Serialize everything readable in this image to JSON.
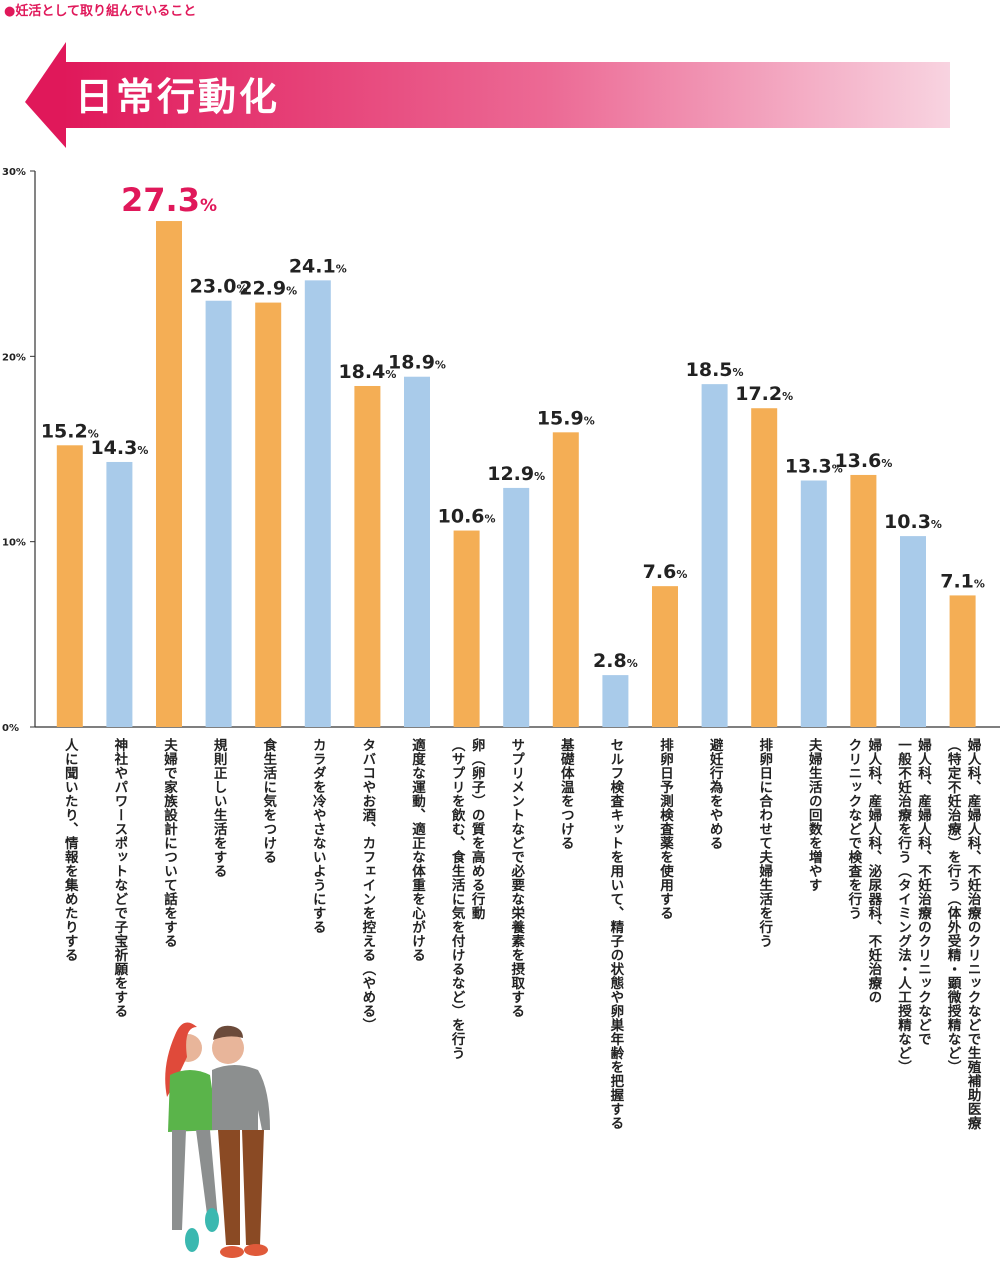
{
  "chart_data": {
    "type": "bar",
    "subtitle": "●妊活として取り組んでいること",
    "title": "日常行動化",
    "categories": [
      "人に聞いたり、情報を集めたりする",
      "神社やパワースポットなどで子宝祈願をする",
      "夫婦で家族設計について話をする",
      "規則正しい生活をする",
      "食生活に気をつける",
      "カラダを冷やさないようにする",
      "タバコやお酒、カフェインを控える（やめる）",
      "適度な運動、適正な体重を心がける",
      "卵（卵子）の質を高める行動\n（サプリを飲む、食生活に気を付けるなど）を行う",
      "サプリメントなどで必要な栄養素を摂取する",
      "基礎体温をつける",
      "セルフ検査キットを用いて、精子の状態や卵巣年齢を把握する",
      "排卵日予測検査薬を使用する",
      "避妊行為をやめる",
      "排卵日に合わせて夫婦生活を行う",
      "夫婦生活の回数を増やす",
      "婦人科、産婦人科、泌尿器科、不妊治療の\nクリニックなどで検査を行う",
      "婦人科、産婦人科、不妊治療のクリニックなどで\n一般不妊治療を行う（タイミング法・人工授精など）",
      "婦人科、産婦人科、不妊治療のクリニックなどで生殖補助医療\n（特定不妊治療）を行う（体外受精・顕微授精など）"
    ],
    "values": [
      15.2,
      14.3,
      27.3,
      23.0,
      22.9,
      24.1,
      18.4,
      18.9,
      10.6,
      12.9,
      15.9,
      2.8,
      7.6,
      18.5,
      17.2,
      13.3,
      13.6,
      10.3,
      7.1
    ],
    "value_labels": [
      "15.2%",
      "14.3%",
      "27.3%",
      "23.0%",
      "22.9%",
      "24.1%",
      "18.4%",
      "18.9%",
      "10.6%",
      "12.9%",
      "15.9%",
      "2.8%",
      "7.6%",
      "18.5%",
      "17.2%",
      "13.3%",
      "13.6%",
      "10.3%",
      "7.1%"
    ],
    "colors": [
      "#f4ae55",
      "#a9cbea",
      "#f4ae55",
      "#a9cbea",
      "#f4ae55",
      "#a9cbea",
      "#f4ae55",
      "#a9cbea",
      "#f4ae55",
      "#a9cbea",
      "#f4ae55",
      "#a9cbea",
      "#f4ae55",
      "#a9cbea",
      "#f4ae55",
      "#a9cbea",
      "#f4ae55",
      "#a9cbea",
      "#f4ae55"
    ],
    "highlight_color": "#e0185a",
    "ylim": [
      0,
      30
    ],
    "yticks": [
      {
        "value": 0,
        "label": "0%"
      },
      {
        "value": 10,
        "label": "10%"
      },
      {
        "value": 20,
        "label": "20%"
      },
      {
        "value": 30,
        "label": "30%"
      }
    ],
    "grid": false
  }
}
